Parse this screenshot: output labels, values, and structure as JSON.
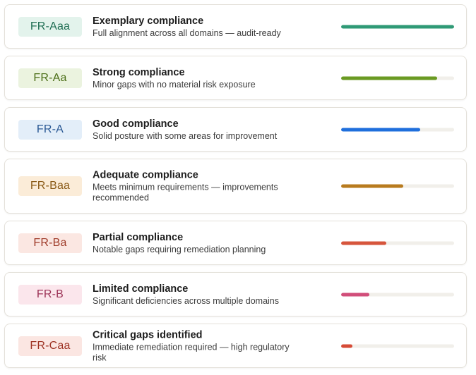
{
  "ratings": [
    {
      "code": "FR-Aaa",
      "title": "Exemplary compliance",
      "description": "Full alignment across all domains — audit-ready",
      "level": 1.0,
      "color": "#2f9a76",
      "badge_bg": "#e3f3ec",
      "badge_fg": "#1f6e53"
    },
    {
      "code": "FR-Aa",
      "title": "Strong compliance",
      "description": "Minor gaps with no material risk exposure",
      "level": 0.85,
      "color": "#6a9a22",
      "badge_bg": "#ebf3df",
      "badge_fg": "#4b6e17"
    },
    {
      "code": "FR-A",
      "title": "Good compliance",
      "description": "Solid posture with some areas for improvement",
      "level": 0.7,
      "color": "#1f6fdc",
      "badge_bg": "#e3eef9",
      "badge_fg": "#2a5894"
    },
    {
      "code": "FR-Baa",
      "title": "Adequate compliance",
      "description": "Meets minimum requirements — improvements recommended",
      "level": 0.55,
      "color": "#b87b1f",
      "badge_bg": "#fbecd8",
      "badge_fg": "#8a5a16"
    },
    {
      "code": "FR-Ba",
      "title": "Partial compliance",
      "description": "Notable gaps requiring remediation planning",
      "level": 0.4,
      "color": "#d6553c",
      "badge_bg": "#fbe7e2",
      "badge_fg": "#9e3a28"
    },
    {
      "code": "FR-B",
      "title": "Limited compliance",
      "description": "Significant deficiencies across multiple domains",
      "level": 0.25,
      "color": "#d14e7a",
      "badge_bg": "#fbe6ec",
      "badge_fg": "#9c3357"
    },
    {
      "code": "FR-Caa",
      "title": "Critical gaps identified",
      "description": "Immediate remediation required — high regulatory risk",
      "level": 0.1,
      "color": "#d64b36",
      "badge_bg": "#fbe6e2",
      "badge_fg": "#9e3324"
    }
  ]
}
